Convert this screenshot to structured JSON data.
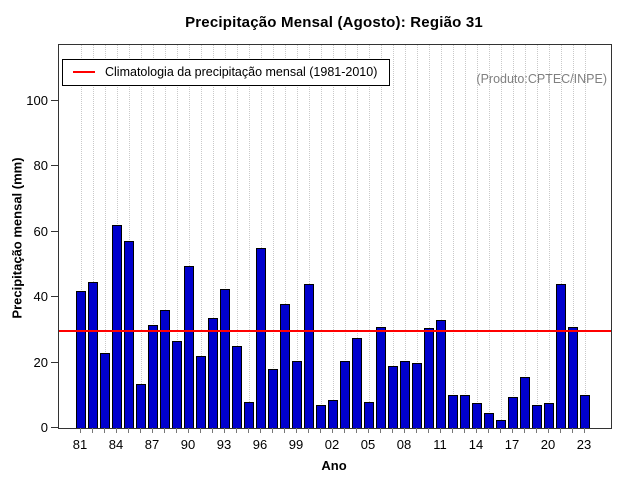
{
  "title": "Precipitação Mensal (Agosto): Região 31",
  "watermark": "(Produto:CPTEC/INPE)",
  "legend": {
    "label": "Climatologia da precipitação mensal (1981-2010)"
  },
  "axes": {
    "x_label": "Ano",
    "y_label": "Precipitação mensal (mm)"
  },
  "colors": {
    "bar_fill": "#0000cd",
    "bar_border": "#000000",
    "climatology_line": "#ff0000",
    "grid": "#c9c9c9",
    "watermark_text": "#808080"
  },
  "chart_data": {
    "type": "bar",
    "title": "Precipitação Mensal (Agosto): Região 31",
    "xlabel": "Ano",
    "ylabel": "Precipitação mensal (mm)",
    "ylim": [
      0,
      117
    ],
    "y_ticks": [
      0,
      20,
      40,
      60,
      80,
      100
    ],
    "x_tick_labels": [
      "81",
      "84",
      "87",
      "90",
      "93",
      "96",
      "99",
      "02",
      "05",
      "08",
      "11",
      "14",
      "17",
      "20",
      "23"
    ],
    "x_label_every": 3,
    "grid": "vertical-dotted",
    "legend_position": "top-left",
    "categories": [
      1981,
      1982,
      1983,
      1984,
      1985,
      1986,
      1987,
      1988,
      1989,
      1990,
      1991,
      1992,
      1993,
      1994,
      1995,
      1996,
      1997,
      1998,
      1999,
      2000,
      2001,
      2002,
      2003,
      2004,
      2005,
      2006,
      2007,
      2008,
      2009,
      2010,
      2011,
      2012,
      2013,
      2014,
      2015,
      2016,
      2017,
      2018,
      2019,
      2020,
      2021,
      2022,
      2023
    ],
    "values": [
      42,
      44.5,
      23,
      62,
      57,
      13.5,
      31.5,
      36,
      26.5,
      49.5,
      22,
      33.5,
      42.5,
      25,
      8,
      55,
      18,
      38,
      20.5,
      44,
      7,
      8.5,
      20.5,
      27.5,
      8,
      31,
      19,
      20.5,
      20,
      30.5,
      33,
      10,
      10,
      7.5,
      4.5,
      2.5,
      9.5,
      15.5,
      7,
      7.5,
      44,
      31,
      10
    ],
    "climatology": {
      "label": "Climatologia da precipitação mensal (1981-2010)",
      "value": 29.5,
      "color": "#ff0000"
    },
    "annotations": [
      "(Produto:CPTEC/INPE)"
    ]
  }
}
